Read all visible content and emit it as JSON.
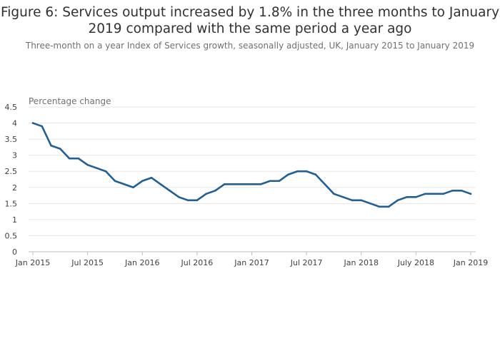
{
  "chart_data": {
    "type": "line",
    "title": "Figure 6: Services output increased by 1.8% in the three months to January 2019 compared with the same period a year ago",
    "subtitle": "Three-month on a year Index of Services growth, seasonally adjusted, UK, January 2015 to January 2019",
    "ylabel": "Percentage change",
    "xlabel": "",
    "ylim": [
      0,
      4.5
    ],
    "yticks": [
      "0",
      "0.5",
      "1",
      "1.5",
      "2",
      "2.5",
      "3",
      "3.5",
      "4",
      "4.5"
    ],
    "xticks": [
      {
        "index": 0,
        "label": "Jan 2015"
      },
      {
        "index": 6,
        "label": "Jul 2015"
      },
      {
        "index": 12,
        "label": "Jan 2016"
      },
      {
        "index": 18,
        "label": "Jul 2016"
      },
      {
        "index": 24,
        "label": "Jan 2017"
      },
      {
        "index": 30,
        "label": "Jul 2017"
      },
      {
        "index": 36,
        "label": "Jan 2018"
      },
      {
        "index": 42,
        "label": "July 2018"
      },
      {
        "index": 48,
        "label": "Jan 2019"
      }
    ],
    "grid": true,
    "series": [
      {
        "color": "#206095",
        "values": [
          4.0,
          3.9,
          3.3,
          3.2,
          2.9,
          2.9,
          2.7,
          2.6,
          2.5,
          2.2,
          2.1,
          2.0,
          2.2,
          2.3,
          2.1,
          1.9,
          1.7,
          1.6,
          1.6,
          1.8,
          1.9,
          2.1,
          2.1,
          2.1,
          2.1,
          2.1,
          2.2,
          2.2,
          2.4,
          2.5,
          2.5,
          2.4,
          2.1,
          1.8,
          1.7,
          1.6,
          1.6,
          1.5,
          1.4,
          1.4,
          1.6,
          1.7,
          1.7,
          1.8,
          1.8,
          1.8,
          1.9,
          1.9,
          1.8
        ]
      }
    ]
  }
}
